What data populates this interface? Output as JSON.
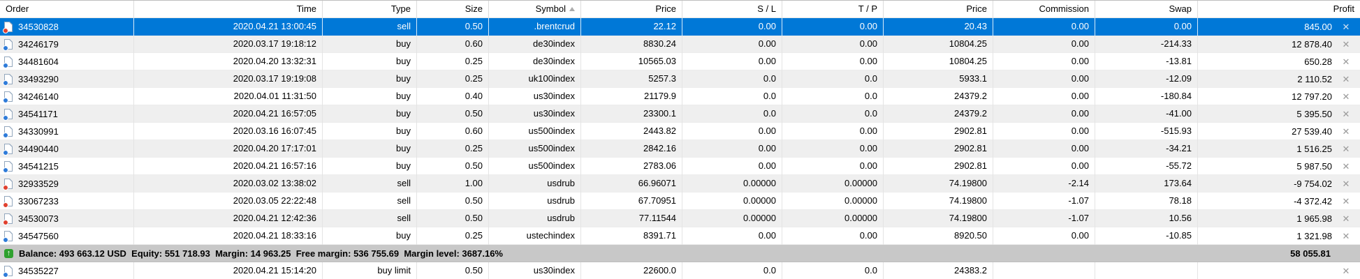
{
  "columns": [
    {
      "label": "Order",
      "align": "left"
    },
    {
      "label": "Time",
      "align": "right"
    },
    {
      "label": "Type",
      "align": "right"
    },
    {
      "label": "Size",
      "align": "right"
    },
    {
      "label": "Symbol",
      "align": "right",
      "sorted": "ascending"
    },
    {
      "label": "Price",
      "align": "right"
    },
    {
      "label": "S / L",
      "align": "right"
    },
    {
      "label": "T / P",
      "align": "right"
    },
    {
      "label": "Price",
      "align": "right"
    },
    {
      "label": "Commission",
      "align": "right"
    },
    {
      "label": "Swap",
      "align": "right"
    },
    {
      "label": "Profit",
      "align": "right"
    }
  ],
  "rows": [
    {
      "order": "34530828",
      "time": "2020.04.21 13:00:45",
      "type": "sell",
      "size": "0.50",
      "symbol": ".brentcrud",
      "price_open": "22.12",
      "sl": "0.00",
      "tp": "0.00",
      "price_current": "20.43",
      "commission": "0.00",
      "swap": "0.00",
      "profit": "845.00",
      "direction": "sell",
      "selected": true,
      "section": "top"
    },
    {
      "order": "34246179",
      "time": "2020.03.17 19:18:12",
      "type": "buy",
      "size": "0.60",
      "symbol": "de30index",
      "price_open": "8830.24",
      "sl": "0.00",
      "tp": "0.00",
      "price_current": "10804.25",
      "commission": "0.00",
      "swap": "-214.33",
      "profit": "12 878.40",
      "direction": "buy",
      "selected": false,
      "section": "top"
    },
    {
      "order": "34481604",
      "time": "2020.04.20 13:32:31",
      "type": "buy",
      "size": "0.25",
      "symbol": "de30index",
      "price_open": "10565.03",
      "sl": "0.00",
      "tp": "0.00",
      "price_current": "10804.25",
      "commission": "0.00",
      "swap": "-13.81",
      "profit": "650.28",
      "direction": "buy",
      "selected": false,
      "section": "top"
    },
    {
      "order": "33493290",
      "time": "2020.03.17 19:19:08",
      "type": "buy",
      "size": "0.25",
      "symbol": "uk100index",
      "price_open": "5257.3",
      "sl": "0.0",
      "tp": "0.0",
      "price_current": "5933.1",
      "commission": "0.00",
      "swap": "-12.09",
      "profit": "2 110.52",
      "direction": "buy",
      "selected": false,
      "section": "top"
    },
    {
      "order": "34246140",
      "time": "2020.04.01 11:31:50",
      "type": "buy",
      "size": "0.40",
      "symbol": "us30index",
      "price_open": "21179.9",
      "sl": "0.0",
      "tp": "0.0",
      "price_current": "24379.2",
      "commission": "0.00",
      "swap": "-180.84",
      "profit": "12 797.20",
      "direction": "buy",
      "selected": false,
      "section": "top"
    },
    {
      "order": "34541171",
      "time": "2020.04.21 16:57:05",
      "type": "buy",
      "size": "0.50",
      "symbol": "us30index",
      "price_open": "23300.1",
      "sl": "0.0",
      "tp": "0.0",
      "price_current": "24379.2",
      "commission": "0.00",
      "swap": "-41.00",
      "profit": "5 395.50",
      "direction": "buy",
      "selected": false,
      "section": "top"
    },
    {
      "order": "34330991",
      "time": "2020.03.16 16:07:45",
      "type": "buy",
      "size": "0.60",
      "symbol": "us500index",
      "price_open": "2443.82",
      "sl": "0.00",
      "tp": "0.00",
      "price_current": "2902.81",
      "commission": "0.00",
      "swap": "-515.93",
      "profit": "27 539.40",
      "direction": "buy",
      "selected": false,
      "section": "top"
    },
    {
      "order": "34490440",
      "time": "2020.04.20 17:17:01",
      "type": "buy",
      "size": "0.25",
      "symbol": "us500index",
      "price_open": "2842.16",
      "sl": "0.00",
      "tp": "0.00",
      "price_current": "2902.81",
      "commission": "0.00",
      "swap": "-34.21",
      "profit": "1 516.25",
      "direction": "buy",
      "selected": false,
      "section": "top"
    },
    {
      "order": "34541215",
      "time": "2020.04.21 16:57:16",
      "type": "buy",
      "size": "0.50",
      "symbol": "us500index",
      "price_open": "2783.06",
      "sl": "0.00",
      "tp": "0.00",
      "price_current": "2902.81",
      "commission": "0.00",
      "swap": "-55.72",
      "profit": "5 987.50",
      "direction": "buy",
      "selected": false,
      "section": "top"
    },
    {
      "order": "32933529",
      "time": "2020.03.02 13:38:02",
      "type": "sell",
      "size": "1.00",
      "symbol": "usdrub",
      "price_open": "66.96071",
      "sl": "0.00000",
      "tp": "0.00000",
      "price_current": "74.19800",
      "commission": "-2.14",
      "swap": "173.64",
      "profit": "-9 754.02",
      "direction": "sell",
      "selected": false,
      "section": "top"
    },
    {
      "order": "33067233",
      "time": "2020.03.05 22:22:48",
      "type": "sell",
      "size": "0.50",
      "symbol": "usdrub",
      "price_open": "67.70951",
      "sl": "0.00000",
      "tp": "0.00000",
      "price_current": "74.19800",
      "commission": "-1.07",
      "swap": "78.18",
      "profit": "-4 372.42",
      "direction": "sell",
      "selected": false,
      "section": "top"
    },
    {
      "order": "34530073",
      "time": "2020.04.21 12:42:36",
      "type": "sell",
      "size": "0.50",
      "symbol": "usdrub",
      "price_open": "77.11544",
      "sl": "0.00000",
      "tp": "0.00000",
      "price_current": "74.19800",
      "commission": "-1.07",
      "swap": "10.56",
      "profit": "1 965.98",
      "direction": "sell",
      "selected": false,
      "section": "top"
    },
    {
      "order": "34547560",
      "time": "2020.04.21 18:33:16",
      "type": "buy",
      "size": "0.25",
      "symbol": "ustechindex",
      "price_open": "8391.71",
      "sl": "0.00",
      "tp": "0.00",
      "price_current": "8920.50",
      "commission": "0.00",
      "swap": "-10.85",
      "profit": "1 321.98",
      "direction": "buy",
      "selected": false,
      "section": "top"
    },
    {
      "order": "34535227",
      "time": "2020.04.21 15:14:20",
      "type": "buy limit",
      "size": "0.50",
      "symbol": "us30index",
      "price_open": "22600.0",
      "sl": "0.0",
      "tp": "0.0",
      "price_current": "24383.2",
      "commission": "",
      "swap": "",
      "profit": "",
      "direction": "buy",
      "selected": false,
      "section": "bottom"
    }
  ],
  "balance": {
    "summary": "Balance: 493 663.12 USD  Equity: 551 718.93  Margin: 14 963.25  Free margin: 536 755.69  Margin level: 3687.16%",
    "total_profit": "58 055.81"
  },
  "icons": {
    "close": "✕",
    "balance_arrow": "↑"
  },
  "colors": {
    "selection": "#0078d7",
    "buy_badge": "#2e7bd9",
    "sell_badge": "#e0402e",
    "balance_bar": "#c8c8c8",
    "balance_icon": "#2fa12f"
  }
}
